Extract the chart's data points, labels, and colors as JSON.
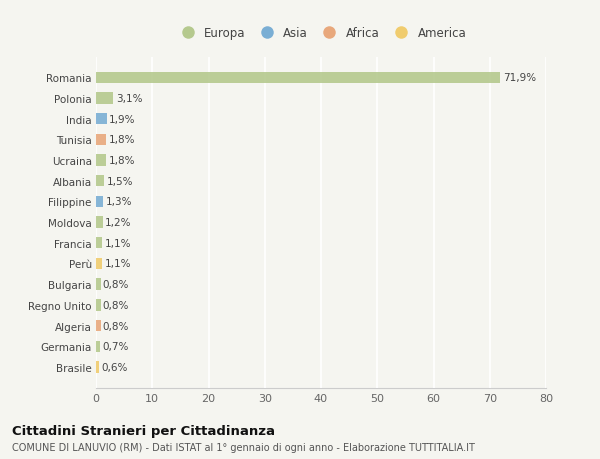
{
  "countries": [
    "Romania",
    "Polonia",
    "India",
    "Tunisia",
    "Ucraina",
    "Albania",
    "Filippine",
    "Moldova",
    "Francia",
    "Perù",
    "Bulgaria",
    "Regno Unito",
    "Algeria",
    "Germania",
    "Brasile"
  ],
  "values": [
    71.9,
    3.1,
    1.9,
    1.8,
    1.8,
    1.5,
    1.3,
    1.2,
    1.1,
    1.1,
    0.8,
    0.8,
    0.8,
    0.7,
    0.6
  ],
  "labels": [
    "71,9%",
    "3,1%",
    "1,9%",
    "1,8%",
    "1,8%",
    "1,5%",
    "1,3%",
    "1,2%",
    "1,1%",
    "1,1%",
    "0,8%",
    "0,8%",
    "0,8%",
    "0,7%",
    "0,6%"
  ],
  "continents": [
    "Europa",
    "Europa",
    "Asia",
    "Africa",
    "Europa",
    "Europa",
    "Asia",
    "Europa",
    "Europa",
    "America",
    "Europa",
    "Europa",
    "Africa",
    "Europa",
    "America"
  ],
  "continent_colors": {
    "Europa": "#b5c98e",
    "Asia": "#7aaed4",
    "Africa": "#e8a87c",
    "America": "#f0cc6e"
  },
  "legend_order": [
    "Europa",
    "Asia",
    "Africa",
    "America"
  ],
  "legend_colors": [
    "#b5c98e",
    "#7aaed4",
    "#e8a87c",
    "#f0cc6e"
  ],
  "background_color": "#f5f5f0",
  "title": "Cittadini Stranieri per Cittadinanza",
  "subtitle": "COMUNE DI LANUVIO (RM) - Dati ISTAT al 1° gennaio di ogni anno - Elaborazione TUTTITALIA.IT",
  "xlim": [
    0,
    80
  ],
  "xticks": [
    0,
    10,
    20,
    30,
    40,
    50,
    60,
    70,
    80
  ]
}
